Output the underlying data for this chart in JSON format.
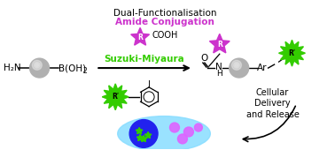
{
  "background_color": "#ffffff",
  "text_dual": "Dual-Functionalisation",
  "text_amide": "Amide Conjugation",
  "text_suzuki": "Suzuki-Miyaura",
  "text_cellular": "Cellular\nDelivery\nand Release",
  "text_cooh": "COOH",
  "text_h2n": "H₂N",
  "text_ar": "Ar",
  "text_r": "R",
  "text_rprime": "Rʹ",
  "text_iodine": "I",
  "text_o": "O",
  "text_nh": "N",
  "text_h": "H",
  "color_purple": "#CC33CC",
  "color_green": "#33CC00",
  "color_black": "#000000",
  "color_nanoparticle_grad1": "#aaaaaa",
  "color_nanoparticle_grad2": "#dddddd",
  "color_cell_outer": "#88DDFF",
  "color_cell_inner": "#2222EE",
  "color_pink_dots": "#DD66FF",
  "figsize": [
    3.78,
    1.7
  ],
  "dpi": 100
}
